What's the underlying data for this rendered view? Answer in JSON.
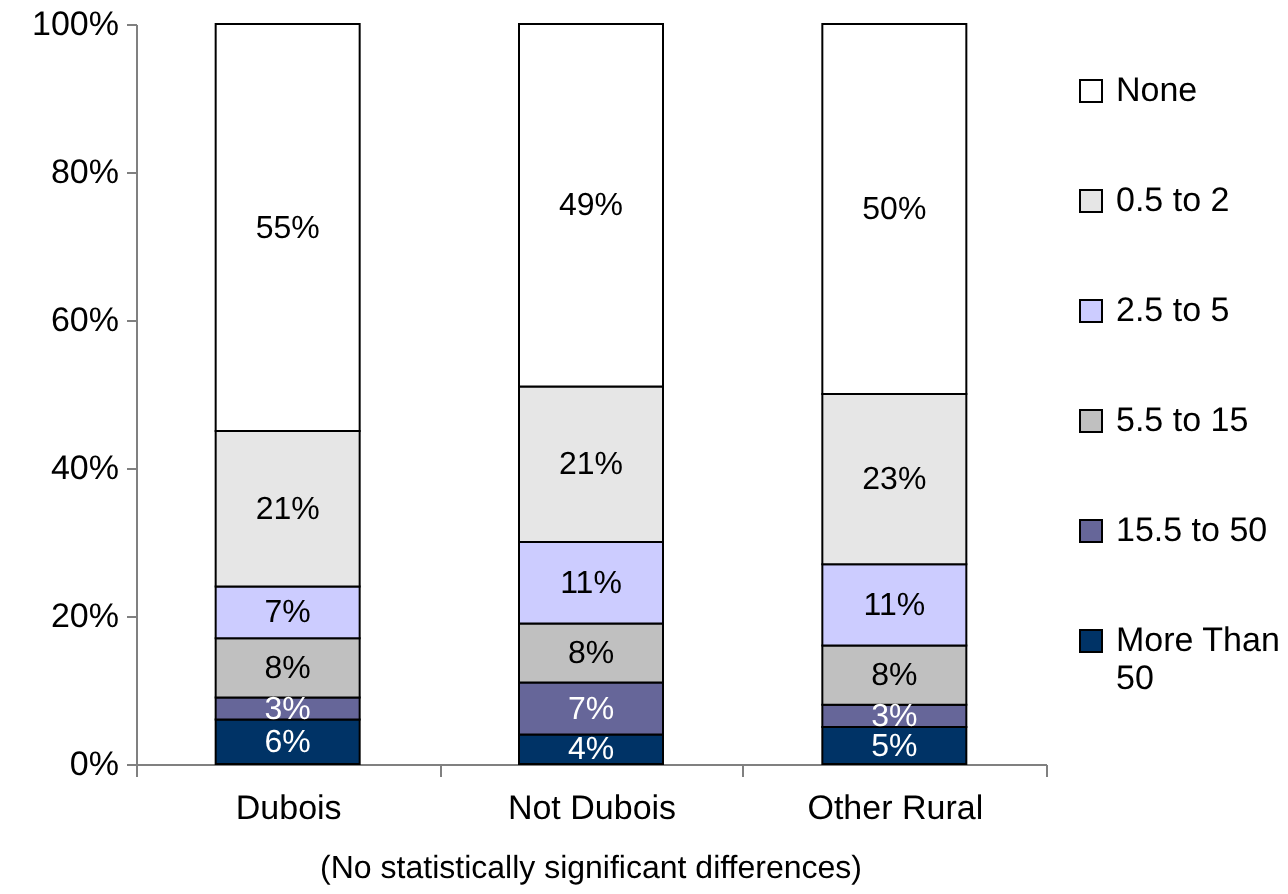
{
  "chart_data": {
    "type": "bar",
    "stacked": true,
    "categories": [
      "Dubois",
      "Not Dubois",
      "Other Rural"
    ],
    "series": [
      {
        "name": "More Than 50",
        "color": "#003366",
        "values": [
          6,
          4,
          5
        ],
        "value_labels": [
          "6%",
          "4%",
          "5%"
        ]
      },
      {
        "name": "15.5 to 50",
        "color": "#666699",
        "values": [
          3,
          7,
          3
        ],
        "value_labels": [
          "3%",
          "7%",
          "3%"
        ]
      },
      {
        "name": "5.5 to 15",
        "color": "#c0c0c0",
        "values": [
          8,
          8,
          8
        ],
        "value_labels": [
          "8%",
          "8%",
          "8%"
        ]
      },
      {
        "name": "2.5 to 5",
        "color": "#ccccff",
        "values": [
          7,
          11,
          11
        ],
        "value_labels": [
          "7%",
          "11%",
          "11%"
        ]
      },
      {
        "name": "0.5 to 2",
        "color": "#e6e6e6",
        "values": [
          21,
          21,
          23
        ],
        "value_labels": [
          "21%",
          "21%",
          "23%"
        ]
      },
      {
        "name": "None",
        "color": "#ffffff",
        "values": [
          55,
          49,
          50
        ],
        "value_labels": [
          "55%",
          "49%",
          "50%"
        ]
      }
    ],
    "ylim": [
      0,
      100
    ],
    "yticks": [
      {
        "value": 0,
        "label": "0%"
      },
      {
        "value": 20,
        "label": "20%"
      },
      {
        "value": 40,
        "label": "40%"
      },
      {
        "value": 60,
        "label": "60%"
      },
      {
        "value": 80,
        "label": "80%"
      },
      {
        "value": 100,
        "label": "100%"
      }
    ],
    "grid": false,
    "legend": "right",
    "annotations": [
      "(No statistically significant differences)"
    ]
  }
}
